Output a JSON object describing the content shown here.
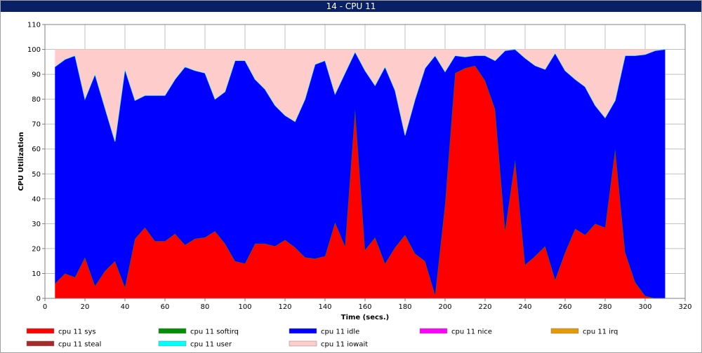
{
  "window": {
    "title": "14 - CPU 11"
  },
  "colors": {
    "sys": "#ff0000",
    "softirq": "#008f00",
    "idle": "#0000ff",
    "nice": "#ff00ff",
    "irq": "#e69900",
    "steal": "#a52a2a",
    "user": "#00ffff",
    "iowait": "#ffcccc"
  },
  "chart_data": {
    "type": "area",
    "stacked": true,
    "xlabel": "Time (secs.)",
    "ylabel": "CPU Utilization",
    "xlim": [
      0,
      320
    ],
    "ylim": [
      0,
      110
    ],
    "xticks": [
      0,
      20,
      40,
      60,
      80,
      100,
      120,
      140,
      160,
      180,
      200,
      220,
      240,
      260,
      280,
      300,
      320
    ],
    "yticks": [
      0,
      10,
      20,
      30,
      40,
      50,
      60,
      70,
      80,
      90,
      100,
      110
    ],
    "grid": true,
    "legend_position": "bottom",
    "x": [
      5,
      10,
      15,
      20,
      25,
      30,
      35,
      40,
      45,
      50,
      55,
      60,
      65,
      70,
      75,
      80,
      85,
      90,
      95,
      100,
      105,
      110,
      115,
      120,
      125,
      130,
      135,
      140,
      145,
      150,
      155,
      160,
      165,
      170,
      175,
      180,
      185,
      190,
      195,
      200,
      205,
      210,
      215,
      220,
      225,
      230,
      235,
      240,
      245,
      250,
      255,
      260,
      265,
      270,
      275,
      280,
      285,
      290,
      295,
      300,
      305,
      310
    ],
    "series": [
      {
        "name": "cpu 11 sys",
        "color_key": "sys",
        "values": [
          6,
          10,
          8.5,
          16.5,
          5,
          11,
          15,
          4.5,
          24,
          28.5,
          23,
          23,
          26,
          21.5,
          24,
          24.5,
          27,
          22,
          15,
          14,
          22,
          22,
          21,
          23.5,
          20.5,
          16.5,
          16,
          17,
          30.5,
          21,
          76,
          19.5,
          24.5,
          14,
          20.5,
          25.5,
          18,
          15,
          1.5,
          38,
          90.5,
          92.5,
          93.5,
          87.5,
          76,
          27.5,
          55.5,
          13.5,
          17,
          21,
          7.5,
          18.5,
          28,
          25.5,
          30,
          28.5,
          60,
          18.5,
          6.5,
          1,
          0,
          0
        ]
      },
      {
        "name": "cpu 11 softirq",
        "color_key": "softirq",
        "values": [
          0,
          0,
          0,
          0,
          0,
          0,
          0,
          0,
          0,
          0,
          0,
          0,
          0,
          0,
          0,
          0,
          0,
          0,
          0,
          0,
          0,
          0,
          0,
          0,
          0,
          0,
          0,
          0,
          0,
          0,
          0,
          0,
          0,
          0,
          0,
          0,
          0,
          0,
          0,
          0,
          0,
          0,
          0,
          0,
          0,
          0,
          0,
          0,
          0,
          0,
          0,
          0,
          0,
          0,
          0,
          0,
          0,
          0,
          0,
          0,
          0,
          0
        ]
      },
      {
        "name": "cpu 11 idle",
        "color_key": "idle",
        "values": [
          87,
          86,
          89,
          63.5,
          85,
          65.5,
          48,
          87.5,
          55.5,
          53,
          58.5,
          58.5,
          62,
          71.5,
          67.5,
          66,
          53,
          61,
          80.5,
          81.5,
          66,
          62,
          56.5,
          50,
          50.5,
          63.5,
          78,
          78.5,
          51.5,
          69.5,
          23,
          72,
          61,
          79,
          63,
          40,
          62,
          77.5,
          96,
          53,
          7,
          4.5,
          4,
          10,
          19.5,
          72,
          44.5,
          83,
          76.5,
          71,
          91,
          73,
          60,
          59.5,
          47.5,
          44,
          19.5,
          79,
          91,
          97,
          99.5,
          100
        ]
      },
      {
        "name": "cpu 11 nice",
        "color_key": "nice",
        "values": [
          0,
          0,
          0,
          0,
          0,
          0,
          0,
          0,
          0,
          0,
          0,
          0,
          0,
          0,
          0,
          0,
          0,
          0,
          0,
          0,
          0,
          0,
          0,
          0,
          0,
          0,
          0,
          0,
          0,
          0,
          0,
          0,
          0,
          0,
          0,
          0,
          0,
          0,
          0,
          0,
          0,
          0,
          0,
          0,
          0,
          0,
          0,
          0,
          0,
          0,
          0,
          0,
          0,
          0,
          0,
          0,
          0,
          0,
          0,
          0,
          0,
          0
        ]
      },
      {
        "name": "cpu 11 irq",
        "color_key": "irq",
        "values": [
          0,
          0,
          0,
          0,
          0,
          0,
          0,
          0,
          0,
          0,
          0,
          0,
          0,
          0,
          0,
          0,
          0,
          0,
          0,
          0,
          0,
          0,
          0,
          0,
          0,
          0,
          0,
          0,
          0,
          0,
          0,
          0,
          0,
          0,
          0,
          0,
          0,
          0,
          0,
          0,
          0,
          0,
          0,
          0,
          0,
          0,
          0,
          0,
          0,
          0,
          0,
          0,
          0,
          0,
          0,
          0,
          0,
          0,
          0,
          0,
          0,
          0
        ]
      },
      {
        "name": "cpu 11 steal",
        "color_key": "steal",
        "values": [
          0,
          0,
          0,
          0,
          0,
          0,
          0,
          0,
          0,
          0,
          0,
          0,
          0,
          0,
          0,
          0,
          0,
          0,
          0,
          0,
          0,
          0,
          0,
          0,
          0,
          0,
          0,
          0,
          0,
          0,
          0,
          0,
          0,
          0,
          0,
          0,
          0,
          0,
          0,
          0,
          0,
          0,
          0,
          0,
          0,
          0,
          0,
          0,
          0,
          0,
          0,
          0,
          0,
          0,
          0,
          0,
          0,
          0,
          0,
          0,
          0,
          0
        ]
      },
      {
        "name": "cpu 11 user",
        "color_key": "user",
        "values": [
          0,
          0,
          0,
          0,
          0,
          0,
          0,
          0,
          0,
          0,
          0,
          0,
          0,
          0,
          0,
          0,
          0,
          0,
          0,
          0,
          0,
          0,
          0,
          0,
          0,
          0,
          0,
          0,
          0,
          0,
          0,
          0,
          0,
          0,
          0,
          0,
          0,
          0,
          0,
          0,
          0,
          0,
          0,
          0,
          0,
          0,
          0,
          0,
          0,
          0,
          0,
          0,
          0,
          0,
          0,
          0,
          0,
          0,
          0,
          0,
          0,
          0
        ]
      },
      {
        "name": "cpu 11 iowait",
        "color_key": "iowait",
        "values": [
          7,
          4,
          2.5,
          20,
          10,
          23.5,
          37,
          8,
          20.5,
          18.5,
          18.5,
          18.5,
          12,
          7,
          8.5,
          9.5,
          20,
          17,
          4.5,
          4.5,
          12,
          16,
          22.5,
          26.5,
          29,
          20,
          6,
          4.5,
          18,
          9.5,
          1,
          8.5,
          14.5,
          7,
          16.5,
          34.5,
          20,
          7.5,
          2.5,
          9,
          2.5,
          3,
          2.5,
          2.5,
          4.5,
          0.5,
          0,
          3.5,
          6.5,
          8,
          1.5,
          8.5,
          12,
          15,
          22.5,
          27.5,
          20.5,
          2.5,
          2.5,
          2,
          0.5,
          0
        ]
      }
    ]
  }
}
